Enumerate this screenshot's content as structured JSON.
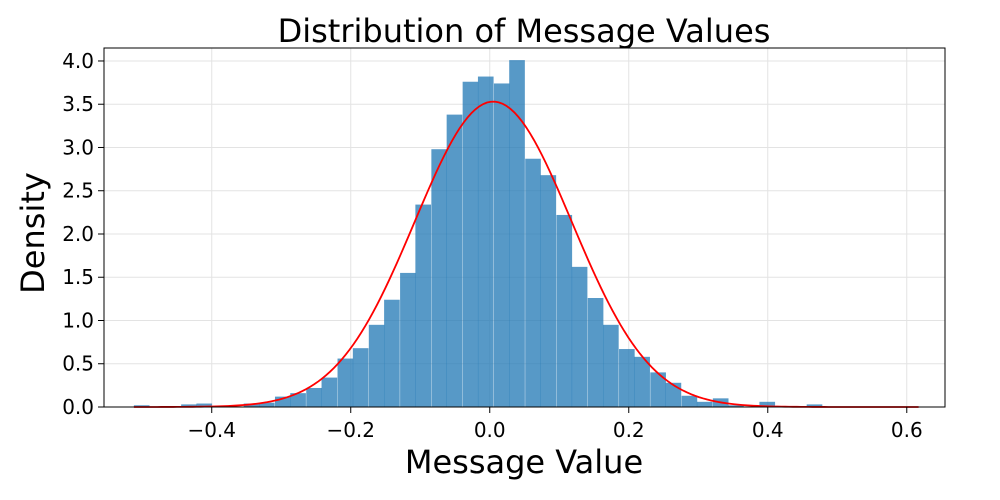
{
  "chart_data": {
    "type": "bar",
    "title": "Distribution of Message Values",
    "xlabel": "Message Value",
    "ylabel": "Density",
    "xlim": [
      -0.555,
      0.655
    ],
    "ylim": [
      0,
      4.15
    ],
    "x_ticks": [
      -0.4,
      -0.2,
      0.0,
      0.2,
      0.4,
      0.6
    ],
    "x_tick_labels": [
      "−0.4",
      "−0.2",
      "0.0",
      "0.2",
      "0.4",
      "0.6"
    ],
    "y_ticks": [
      0.0,
      0.5,
      1.0,
      1.5,
      2.0,
      2.5,
      3.0,
      3.5,
      4.0
    ],
    "y_tick_labels": [
      "0.0",
      "0.5",
      "1.0",
      "1.5",
      "2.0",
      "2.5",
      "3.0",
      "3.5",
      "4.0"
    ],
    "grid": true,
    "bin_width": 0.0225,
    "bins": [
      {
        "x0": -0.512,
        "density": 0.02
      },
      {
        "x0": -0.444,
        "density": 0.03
      },
      {
        "x0": -0.422,
        "density": 0.04
      },
      {
        "x0": -0.354,
        "density": 0.04
      },
      {
        "x0": -0.332,
        "density": 0.05
      },
      {
        "x0": -0.309,
        "density": 0.12
      },
      {
        "x0": -0.287,
        "density": 0.16
      },
      {
        "x0": -0.264,
        "density": 0.22
      },
      {
        "x0": -0.242,
        "density": 0.34
      },
      {
        "x0": -0.219,
        "density": 0.56
      },
      {
        "x0": -0.197,
        "density": 0.68
      },
      {
        "x0": -0.174,
        "density": 0.95
      },
      {
        "x0": -0.152,
        "density": 1.24
      },
      {
        "x0": -0.129,
        "density": 1.55
      },
      {
        "x0": -0.107,
        "density": 2.34
      },
      {
        "x0": -0.084,
        "density": 2.98
      },
      {
        "x0": -0.062,
        "density": 3.38
      },
      {
        "x0": -0.039,
        "density": 3.76
      },
      {
        "x0": -0.017,
        "density": 3.82
      },
      {
        "x0": 0.006,
        "density": 3.74
      },
      {
        "x0": 0.028,
        "density": 4.01
      },
      {
        "x0": 0.051,
        "density": 2.87
      },
      {
        "x0": 0.073,
        "density": 2.68
      },
      {
        "x0": 0.096,
        "density": 2.22
      },
      {
        "x0": 0.118,
        "density": 1.62
      },
      {
        "x0": 0.141,
        "density": 1.26
      },
      {
        "x0": 0.163,
        "density": 0.95
      },
      {
        "x0": 0.186,
        "density": 0.67
      },
      {
        "x0": 0.208,
        "density": 0.58
      },
      {
        "x0": 0.231,
        "density": 0.4
      },
      {
        "x0": 0.253,
        "density": 0.28
      },
      {
        "x0": 0.276,
        "density": 0.13
      },
      {
        "x0": 0.298,
        "density": 0.06
      },
      {
        "x0": 0.321,
        "density": 0.1
      },
      {
        "x0": 0.343,
        "density": 0.02
      },
      {
        "x0": 0.388,
        "density": 0.06
      },
      {
        "x0": 0.456,
        "density": 0.03
      }
    ],
    "normal_fit": {
      "mean": 0.005,
      "std": 0.113,
      "x_range": [
        -0.512,
        0.617
      ]
    },
    "colors": {
      "bars": "#1f77b4",
      "bars_alpha": 0.75,
      "curve": "#ff0000"
    }
  }
}
